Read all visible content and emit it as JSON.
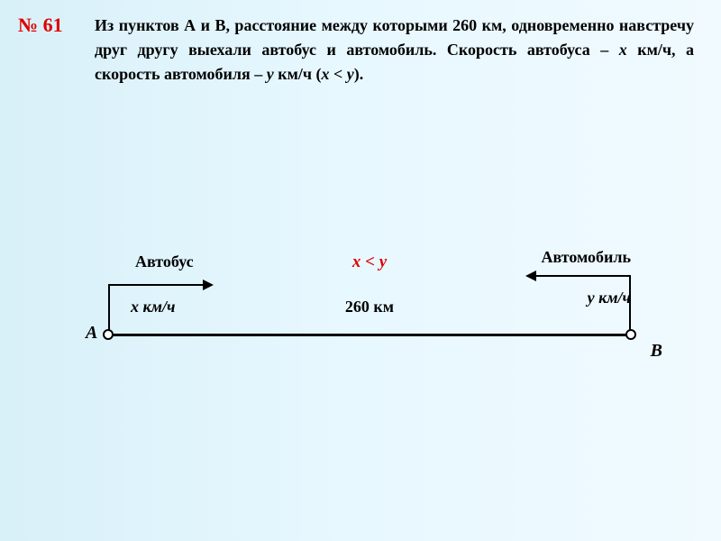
{
  "problem_number": "№ 61",
  "problem_text_parts": {
    "p1": "Из пунктов А и В, расстояние между которыми 260 км, одновременно навстречу друг другу выехали автобус и автомобиль. Скорость автобуса – ",
    "x": "x",
    "p2": " км/ч, а скорость автомобиля – ",
    "y": "y",
    "p3": " км/ч (",
    "ineq": "x < y",
    "p4": ")."
  },
  "diagram": {
    "bus_label": "Автобус",
    "car_label": "Автомобиль",
    "inequality": "x < y",
    "bus_speed": "x км/ч",
    "car_speed": "y км/ч",
    "distance": "260 км",
    "point_a": "А",
    "point_b": "В"
  },
  "colors": {
    "accent_red": "#e00000",
    "text": "#000000",
    "bg_gradient_start": "#d8f0f8",
    "bg_gradient_end": "#f0faff"
  }
}
